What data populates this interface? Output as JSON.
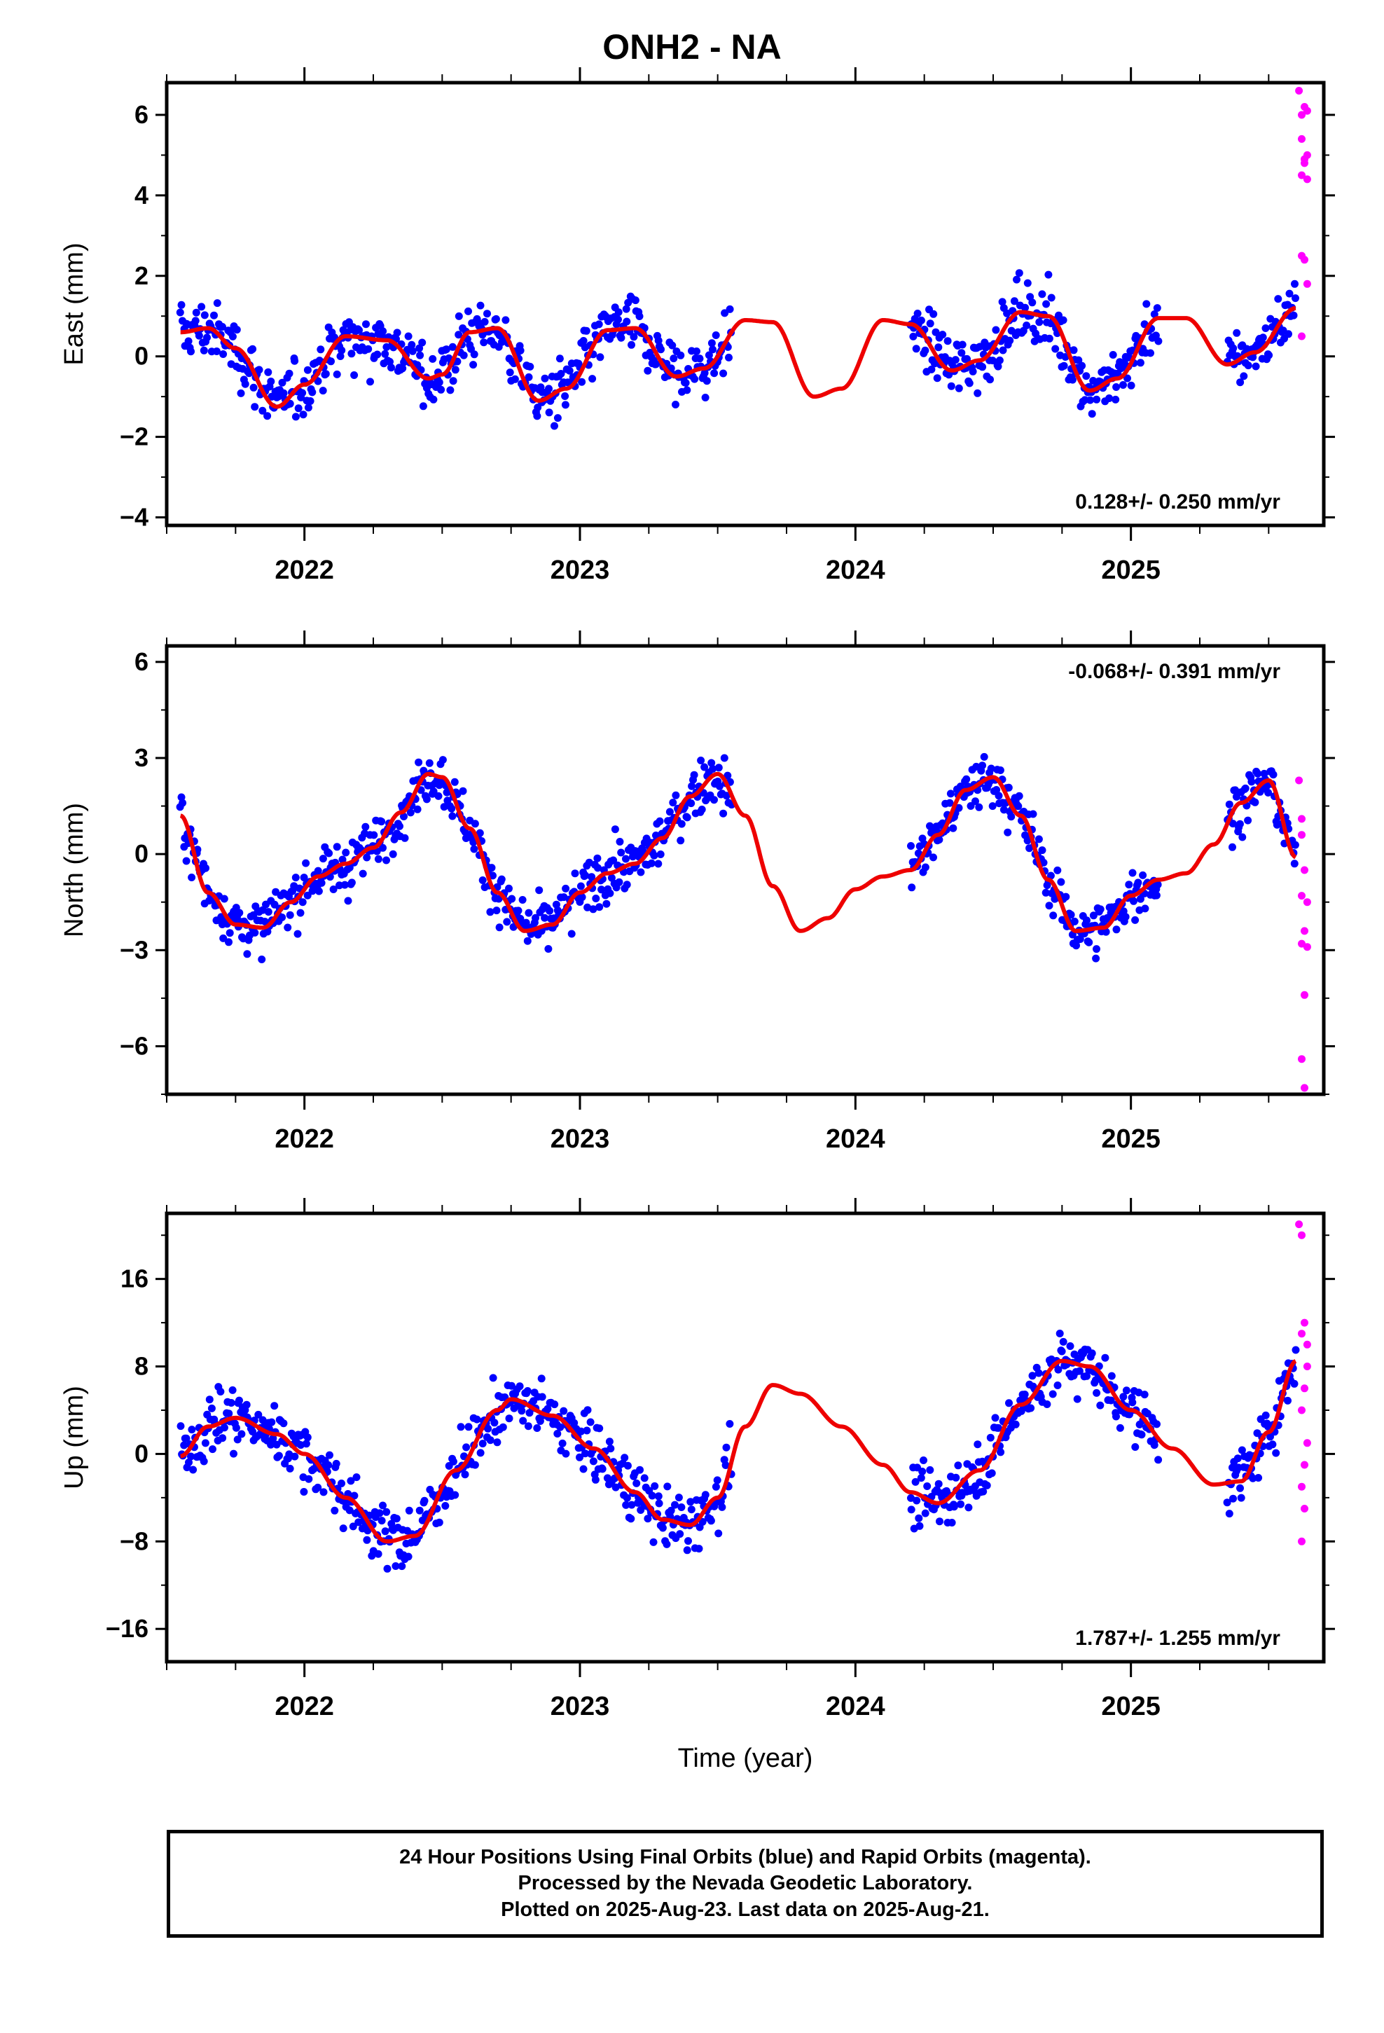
{
  "title": "ONH2 - NA",
  "colors": {
    "final": "#0000ff",
    "rapid": "#ff00ff",
    "model": "#ee0000",
    "axis": "#000000"
  },
  "chart_data": [
    {
      "type": "scatter",
      "ylabel": "East (mm)",
      "xlim": [
        2021.5,
        2025.7
      ],
      "ylim": [
        -4.2,
        6.8
      ],
      "yticks": [
        -4,
        -2,
        0,
        2,
        4,
        6
      ],
      "yticklabels": [
        "−4",
        "−2",
        "0",
        "2",
        "4",
        "6"
      ],
      "xticks": [
        2022,
        2023,
        2024,
        2025
      ],
      "xticklabels": [
        "2022",
        "2023",
        "2024",
        "2025"
      ],
      "annotation": "0.128+/- 0.250 mm/yr",
      "annotation_position": "bottom-right",
      "series": [
        {
          "kind": "final",
          "segments": [
            [
              2021.55,
              2023.55
            ],
            [
              2024.2,
              2025.1
            ],
            [
              2025.35,
              2025.6
            ]
          ],
          "amplitude": 1.0,
          "noise": 0.95,
          "trend": 0.13,
          "offset": -0.15
        },
        {
          "kind": "rapid",
          "x": [
            2025.61,
            2025.62,
            2025.63,
            2025.62,
            2025.64,
            2025.63,
            2025.62,
            2025.64,
            2025.63,
            2025.62,
            2025.63,
            2025.64,
            2025.62,
            2025.64
          ],
          "y": [
            6.6,
            6.0,
            6.2,
            5.4,
            5.0,
            4.8,
            4.5,
            4.4,
            4.9,
            2.5,
            2.4,
            1.8,
            0.5,
            6.1
          ]
        }
      ],
      "model": {
        "x": [
          2021.55,
          2021.65,
          2021.75,
          2021.9,
          2022.0,
          2022.15,
          2022.3,
          2022.45,
          2022.5,
          2022.6,
          2022.7,
          2022.85,
          2022.95,
          2023.1,
          2023.2,
          2023.35,
          2023.45,
          2023.6,
          2023.7,
          2023.85,
          2023.95,
          2024.1,
          2024.2,
          2024.35,
          2024.45,
          2024.6,
          2024.7,
          2024.85,
          2024.95,
          2025.1,
          2025.2,
          2025.35,
          2025.45,
          2025.6
        ],
        "y": [
          0.6,
          0.7,
          0.2,
          -1.25,
          -0.7,
          0.5,
          0.4,
          -0.55,
          -0.45,
          0.6,
          0.7,
          -1.1,
          -0.8,
          0.65,
          0.7,
          -0.5,
          -0.3,
          0.9,
          0.85,
          -1.0,
          -0.8,
          0.9,
          0.8,
          -0.35,
          -0.1,
          1.1,
          1.0,
          -0.85,
          -0.55,
          0.95,
          0.95,
          -0.2,
          0.1,
          1.2
        ]
      }
    },
    {
      "type": "scatter",
      "ylabel": "North (mm)",
      "xlim": [
        2021.5,
        2025.7
      ],
      "ylim": [
        -7.5,
        6.5
      ],
      "yticks": [
        -6,
        -3,
        0,
        3,
        6
      ],
      "yticklabels": [
        "−6",
        "−3",
        "0",
        "3",
        "6"
      ],
      "xticks": [
        2022,
        2023,
        2024,
        2025
      ],
      "xticklabels": [
        "2022",
        "2023",
        "2024",
        "2025"
      ],
      "annotation": "-0.068+/- 0.391 mm/yr",
      "annotation_position": "top-right",
      "series": [
        {
          "kind": "final",
          "segments": [
            [
              2021.55,
              2023.55
            ],
            [
              2024.2,
              2025.1
            ],
            [
              2025.35,
              2025.6
            ]
          ],
          "amplitude": 2.3,
          "noise": 1.05,
          "trend": 0.0,
          "offset": 0.0
        },
        {
          "kind": "rapid",
          "x": [
            2025.61,
            2025.62,
            2025.63,
            2025.62,
            2025.64,
            2025.63,
            2025.62,
            2025.64,
            2025.63,
            2025.62,
            2025.63,
            2025.62
          ],
          "y": [
            2.3,
            1.1,
            -0.5,
            -1.3,
            -1.5,
            -2.4,
            -2.8,
            -2.9,
            -4.4,
            -6.4,
            -7.3,
            0.6
          ]
        }
      ],
      "model": {
        "x": [
          2021.55,
          2021.65,
          2021.75,
          2021.85,
          2021.95,
          2022.05,
          2022.15,
          2022.25,
          2022.35,
          2022.45,
          2022.5,
          2022.6,
          2022.7,
          2022.8,
          2022.9,
          2023.0,
          2023.1,
          2023.2,
          2023.3,
          2023.4,
          2023.5,
          2023.6,
          2023.7,
          2023.8,
          2023.9,
          2024.0,
          2024.1,
          2024.2,
          2024.3,
          2024.4,
          2024.5,
          2024.6,
          2024.7,
          2024.8,
          2024.9,
          2025.0,
          2025.1,
          2025.2,
          2025.3,
          2025.4,
          2025.5,
          2025.6
        ],
        "y": [
          1.2,
          -1.2,
          -2.2,
          -2.3,
          -1.5,
          -0.7,
          -0.3,
          0.2,
          1.3,
          2.5,
          2.4,
          0.8,
          -1.2,
          -2.4,
          -2.2,
          -1.2,
          -0.6,
          -0.3,
          0.5,
          1.8,
          2.5,
          1.2,
          -1.0,
          -2.4,
          -2.0,
          -1.1,
          -0.7,
          -0.5,
          0.6,
          2.0,
          2.4,
          1.2,
          -0.8,
          -2.4,
          -2.3,
          -1.3,
          -0.8,
          -0.6,
          0.3,
          1.6,
          2.3,
          -0.1
        ]
      }
    },
    {
      "type": "scatter",
      "ylabel": "Up (mm)",
      "xlim": [
        2021.5,
        2025.7
      ],
      "ylim": [
        -19,
        22
      ],
      "yticks": [
        -16,
        -8,
        0,
        8,
        16
      ],
      "yticklabels": [
        "−16",
        "−8",
        "0",
        "8",
        "16"
      ],
      "xticks": [
        2022,
        2023,
        2024,
        2025
      ],
      "xticklabels": [
        "2022",
        "2023",
        "2024",
        "2025"
      ],
      "xlabel": "Time (year)",
      "annotation": "1.787+/- 1.255 mm/yr",
      "annotation_position": "bottom-right",
      "series": [
        {
          "kind": "final",
          "segments": [
            [
              2021.55,
              2023.55
            ],
            [
              2024.2,
              2025.1
            ],
            [
              2025.35,
              2025.6
            ]
          ],
          "amplitude": 7.5,
          "noise": 3.4,
          "trend": 1.8,
          "offset": -1.5
        },
        {
          "kind": "rapid",
          "x": [
            2025.61,
            2025.62,
            2025.63,
            2025.62,
            2025.64,
            2025.63,
            2025.62,
            2025.64,
            2025.63,
            2025.62,
            2025.63,
            2025.62,
            2025.64
          ],
          "y": [
            21,
            20,
            12,
            11,
            8,
            6,
            4,
            1,
            -1,
            -3,
            -5,
            -8,
            10
          ]
        }
      ],
      "model": {
        "x": [
          2021.55,
          2021.65,
          2021.75,
          2021.9,
          2022.0,
          2022.15,
          2022.3,
          2022.4,
          2022.55,
          2022.7,
          2022.75,
          2022.9,
          2023.05,
          2023.2,
          2023.3,
          2023.4,
          2023.5,
          2023.6,
          2023.7,
          2023.8,
          2023.95,
          2024.1,
          2024.2,
          2024.3,
          2024.45,
          2024.6,
          2024.75,
          2024.85,
          2025.0,
          2025.15,
          2025.3,
          2025.4,
          2025.5,
          2025.6
        ],
        "y": [
          -0.2,
          2.5,
          3.3,
          1.8,
          0.0,
          -4.0,
          -8.0,
          -7.5,
          -1.5,
          4.0,
          5.0,
          3.5,
          0.5,
          -3.5,
          -6.0,
          -6.5,
          -4.0,
          2.5,
          6.3,
          5.5,
          2.5,
          -1.0,
          -3.5,
          -4.5,
          -1.5,
          4.5,
          8.5,
          8.0,
          4.0,
          0.5,
          -2.8,
          -2.5,
          2.0,
          8.5
        ]
      }
    }
  ],
  "footer": {
    "line1": "24 Hour Positions Using Final Orbits (blue) and Rapid Orbits (magenta).",
    "line2": "Processed by the Nevada Geodetic Laboratory.",
    "line3": "Plotted on 2025-Aug-23. Last data on 2025-Aug-21."
  }
}
